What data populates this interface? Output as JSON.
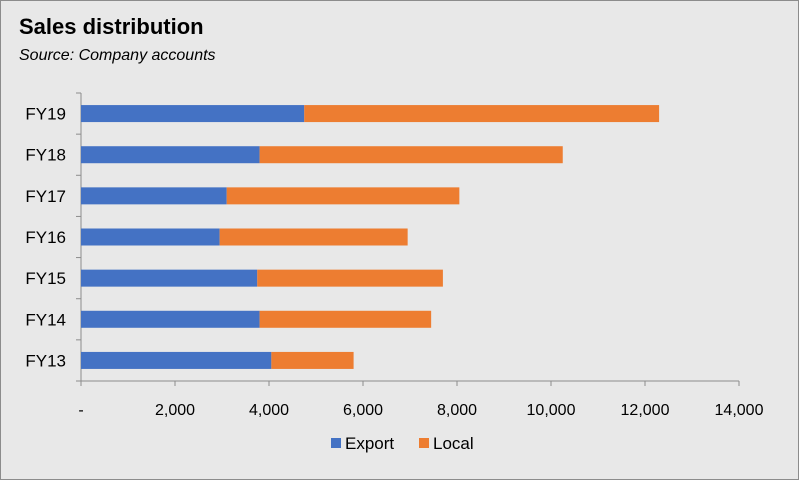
{
  "chart_data": {
    "type": "bar",
    "orientation": "horizontal",
    "stacked": true,
    "title": "Sales distribution",
    "subtitle": "Source: Company accounts",
    "categories": [
      "FY19",
      "FY18",
      "FY17",
      "FY16",
      "FY15",
      "FY14",
      "FY13"
    ],
    "series": [
      {
        "name": "Export",
        "color": "#4472c4",
        "values": [
          4750,
          3800,
          3100,
          2950,
          3750,
          3800,
          4050
        ]
      },
      {
        "name": "Local",
        "color": "#ed7d31",
        "values": [
          7550,
          6450,
          4950,
          4000,
          3950,
          3650,
          1750
        ]
      }
    ],
    "xlim": [
      0,
      14000
    ],
    "xticks": [
      0,
      2000,
      4000,
      6000,
      8000,
      10000,
      12000,
      14000
    ],
    "xtick_labels": [
      "-",
      "2,000",
      "4,000",
      "6,000",
      "8,000",
      "10,000",
      "12,000",
      "14,000"
    ],
    "xlabel": "",
    "ylabel": "",
    "grid": false,
    "legend_position": "bottom"
  }
}
